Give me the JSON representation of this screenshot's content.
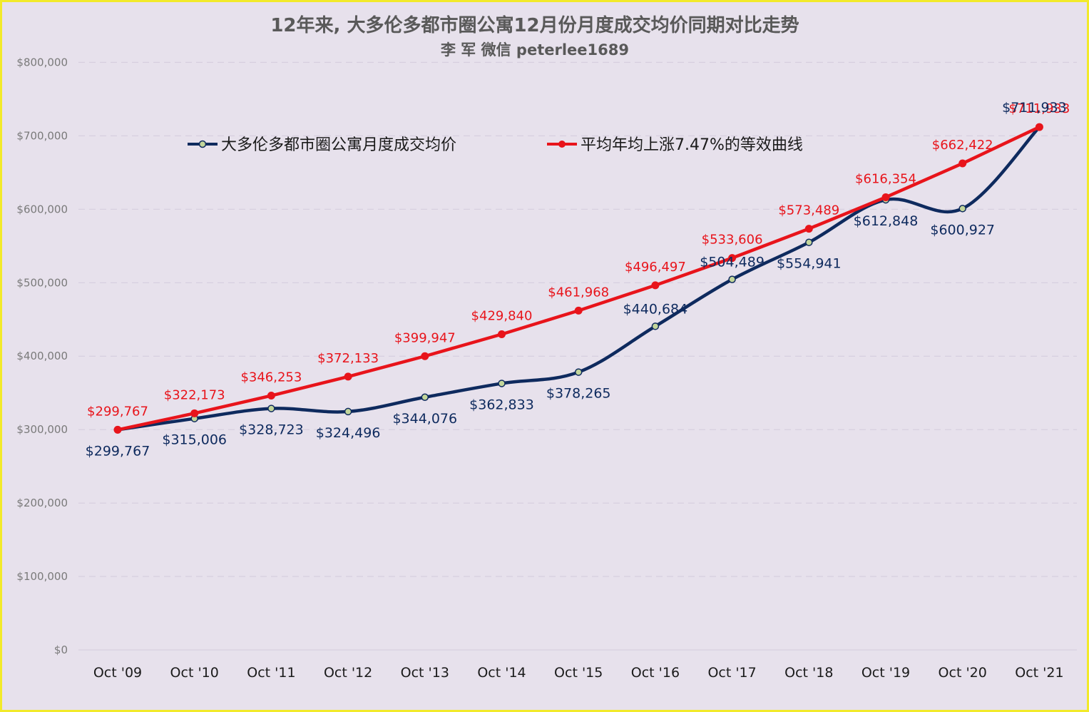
{
  "chart_data": {
    "type": "line",
    "title": "12年来, 大多伦多都市圈公寓12月份月度成交均价同期对比走势",
    "subtitle": "李 军  微信  peterlee1689",
    "categories": [
      "Oct '09",
      "Oct '10",
      "Oct '11",
      "Oct '12",
      "Oct '13",
      "Oct '14",
      "Oct '15",
      "Oct '16",
      "Oct '17",
      "Oct '18",
      "Oct '19",
      "Oct '20",
      "Oct '21"
    ],
    "y_ticks": [
      "$0",
      "$100,000",
      "$200,000",
      "$300,000",
      "$400,000",
      "$500,000",
      "$600,000",
      "$700,000",
      "$800,000"
    ],
    "ylim": [
      0,
      800000
    ],
    "grid": true,
    "legend_position": "top",
    "series": [
      {
        "name": "大多伦多都市圈公寓月度成交均价",
        "color": "#0e2a5e",
        "marker_fill": "#c3d69b",
        "values": [
          299767,
          315006,
          328723,
          324496,
          344076,
          362833,
          378265,
          440684,
          504489,
          554941,
          612848,
          600927,
          711933
        ],
        "labels": [
          "$299,767",
          "$315,006",
          "$328,723",
          "$324,496",
          "$344,076",
          "$362,833",
          "$378,265",
          "$440,684",
          "$504,489",
          "$554,941",
          "$612,848",
          "$600,927",
          "$711,933"
        ]
      },
      {
        "name": "平均年均上涨7.47%的等效曲线",
        "color": "#e8141b",
        "marker_fill": "#e8141b",
        "values": [
          299767,
          322173,
          346253,
          372133,
          399947,
          429840,
          461968,
          496497,
          533606,
          573489,
          616354,
          662422,
          711933
        ],
        "labels": [
          "$299,767",
          "$322,173",
          "$346,253",
          "$372,133",
          "$399,947",
          "$429,840",
          "$461,968",
          "$496,497",
          "$533,606",
          "$573,489",
          "$616,354",
          "$662,422",
          "$711,933"
        ]
      }
    ]
  }
}
